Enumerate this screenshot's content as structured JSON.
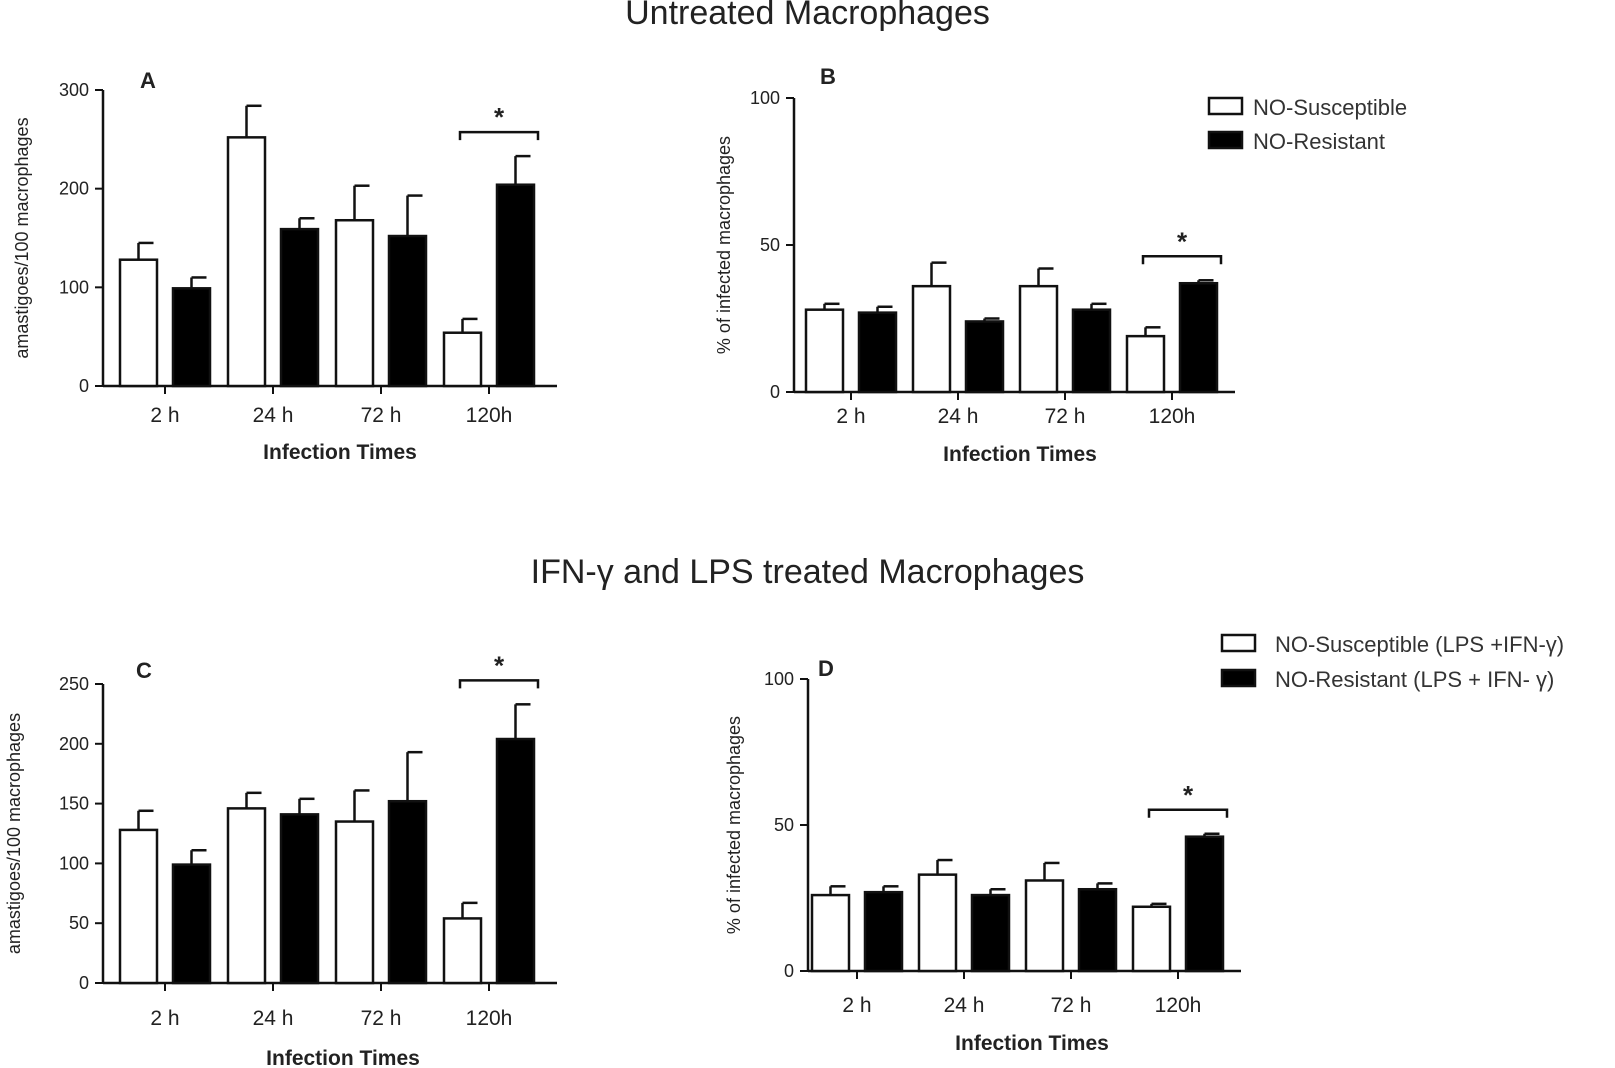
{
  "section_titles": [
    "Untreated Macrophages",
    "IFN-γ and LPS treated Macrophages"
  ],
  "colors": {
    "susceptible": "#ffffff",
    "resistant": "#000000",
    "axis": "#111111"
  },
  "legend_top": [
    "NO-Susceptible",
    "NO-Resistant"
  ],
  "legend_bottom": [
    "NO-Susceptible (LPS +IFN-γ)",
    "NO-Resistant (LPS + IFN- γ)"
  ],
  "chart_data": [
    {
      "panel": "A",
      "type": "bar",
      "categories": [
        "2 h",
        "24 h",
        "72 h",
        "120h"
      ],
      "xlabel": "Infection Times",
      "ylabel": "amastigoes/100 macrophages",
      "ylim": [
        0,
        300
      ],
      "yticks": [
        0,
        100,
        200,
        300
      ],
      "series": [
        {
          "legend_index": 0,
          "values": [
            128,
            252,
            168,
            54
          ],
          "errors": [
            17,
            32,
            35,
            14
          ]
        },
        {
          "legend_index": 1,
          "values": [
            99,
            159,
            152,
            204
          ],
          "errors": [
            11,
            11,
            41,
            29
          ]
        }
      ],
      "significance": {
        "category": "120h",
        "label": "*"
      }
    },
    {
      "panel": "B",
      "type": "bar",
      "categories": [
        "2 h",
        "24 h",
        "72 h",
        "120h"
      ],
      "xlabel": "Infection Times",
      "ylabel": "% of infected macrophages",
      "ylim": [
        0,
        100
      ],
      "yticks": [
        0,
        50,
        100
      ],
      "series": [
        {
          "legend_index": 0,
          "values": [
            28,
            36,
            36,
            19
          ],
          "errors": [
            2,
            8,
            6,
            3
          ]
        },
        {
          "legend_index": 1,
          "values": [
            27,
            24,
            28,
            37
          ],
          "errors": [
            2,
            1,
            2,
            1
          ]
        }
      ],
      "significance": {
        "category": "120h",
        "label": "*"
      }
    },
    {
      "panel": "C",
      "type": "bar",
      "categories": [
        "2 h",
        "24 h",
        "72 h",
        "120h"
      ],
      "xlabel": "Infection Times",
      "ylabel": "amastigoes/100 macrophages",
      "ylim": [
        0,
        250
      ],
      "yticks": [
        0,
        50,
        100,
        150,
        200,
        250
      ],
      "series": [
        {
          "legend_index": 0,
          "values": [
            128,
            146,
            135,
            54
          ],
          "errors": [
            16,
            13,
            26,
            13
          ]
        },
        {
          "legend_index": 1,
          "values": [
            99,
            141,
            152,
            204
          ],
          "errors": [
            12,
            13,
            41,
            29
          ]
        }
      ],
      "significance": {
        "category": "120h",
        "label": "*"
      }
    },
    {
      "panel": "D",
      "type": "bar",
      "categories": [
        "2 h",
        "24 h",
        "72 h",
        "120h"
      ],
      "xlabel": "Infection Times",
      "ylabel": "% of infected macrophages",
      "ylim": [
        0,
        100
      ],
      "yticks": [
        0,
        50,
        100
      ],
      "series": [
        {
          "legend_index": 0,
          "values": [
            26,
            33,
            31,
            22
          ],
          "errors": [
            3,
            5,
            6,
            1
          ]
        },
        {
          "legend_index": 1,
          "values": [
            27,
            26,
            28,
            46
          ],
          "errors": [
            2,
            2,
            2,
            1
          ]
        }
      ],
      "significance": {
        "category": "120h",
        "label": "*"
      }
    }
  ]
}
